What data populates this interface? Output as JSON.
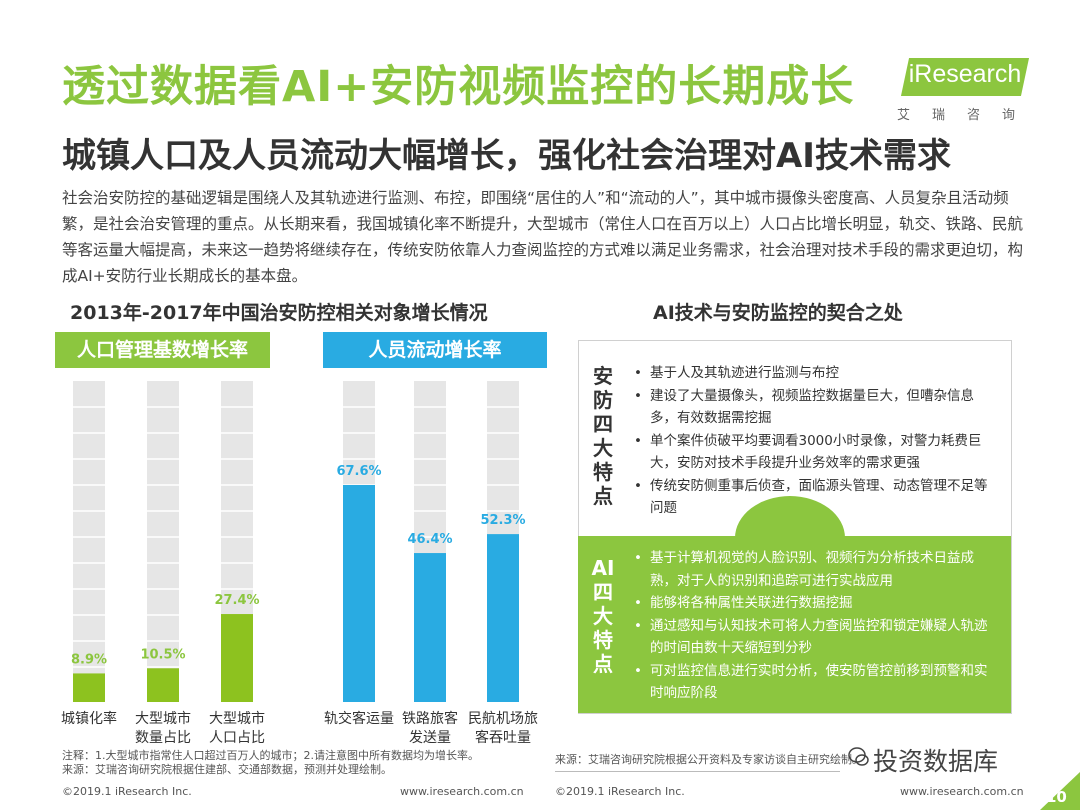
{
  "title": "透过数据看AI+安防视频监控的长期成长",
  "subtitle": "城镇人口及人员流动大幅增长，强化社会治理对AI技术需求",
  "logo": {
    "text": "iResearch",
    "cn": "艾瑞咨询"
  },
  "intro": "社会治安防控的基础逻辑是围绕人及其轨迹进行监测、布控，即围绕“居住的人”和“流动的人”，其中城市摄像头密度高、人员复杂且活动频繁，是社会治安管理的重点。从长期来看，我国城镇化率不断提升，大型城市（常住人口在百万以上）人口占比增长明显，轨交、铁路、民航等客运量大幅提高，未来这一趋势将继续存在，传统安防依靠人力查阅监控的方式难以满足业务需求，社会治理对技术手段的需求更迫切，构成AI+安防行业长期成长的基本盘。",
  "left_section_title": "2013年-2017年中国治安防控相关对象增长情况",
  "right_section_title": "AI技术与安防监控的契合之处",
  "colors": {
    "green": "#8cc63f",
    "green_bar": "#8dc21f",
    "blue": "#29abe2",
    "track": "#e6e6e6"
  },
  "chart_data": [
    {
      "type": "bar",
      "title": "人口管理基数增长率",
      "categories": [
        "城镇化率",
        "大型城市数量占比",
        "大型城市人口占比"
      ],
      "category_lines": [
        [
          "城镇化率"
        ],
        [
          "大型城市",
          "数量占比"
        ],
        [
          "大型城市",
          "人口占比"
        ]
      ],
      "values": [
        8.9,
        10.5,
        27.4
      ],
      "labels": [
        "8.9%",
        "10.5%",
        "27.4%"
      ],
      "ylim": [
        0,
        100
      ]
    },
    {
      "type": "bar",
      "title": "人员流动增长率",
      "categories": [
        "轨交客运量",
        "铁路旅客发送量",
        "民航机场旅客吞吐量"
      ],
      "category_lines": [
        [
          "轨交客运量"
        ],
        [
          "铁路旅客",
          "发送量"
        ],
        [
          "民航机场旅",
          "客吞吐量"
        ]
      ],
      "values": [
        67.6,
        46.4,
        52.3
      ],
      "labels": [
        "67.6%",
        "46.4%",
        "52.3%"
      ],
      "ylim": [
        0,
        100
      ]
    }
  ],
  "panel": {
    "top_label": "安防四大特点",
    "top_points": [
      "基于人及其轨迹进行监测与布控",
      "建设了大量摄像头，视频监控数据量巨大，但嘈杂信息多，有效数据需挖掘",
      "单个案件侦破平均要调看3000小时录像，对警力耗费巨大，安防对技术手段提升业务效率的需求更强",
      "传统安防侧重事后侦查，面临源头管理、动态管理不足等问题"
    ],
    "bottom_label": "AI四大特点",
    "bottom_points": [
      "基于计算机视觉的人脸识别、视频行为分析技术日益成熟，对于人的识别和追踪可进行实战应用",
      "能够将各种属性关联进行数据挖掘",
      "通过感知与认知技术可将人力查阅监控和锁定嫌疑人轨迹的时间由数十天缩短到分秒",
      "可对监控信息进行实时分析，使安防管控前移到预警和实时响应阶段"
    ]
  },
  "notes": {
    "left_note_1": "注释：1.大型城市指常住人口超过百万人的城市；2.请注意图中所有数据均为增长率。",
    "left_note_2": "来源：艾瑞咨询研究院根据住建部、交通部数据，预测并处理绘制。",
    "right_note": "来源：艾瑞咨询研究院根据公开资料及专家访谈自主研究绘制。"
  },
  "footer": {
    "copyright_left": "©2019.1 iResearch Inc.",
    "url_left": "www.iresearch.com.cn",
    "copyright_right": "©2019.1 iResearch Inc.",
    "url_right": "www.iresearch.com.cn",
    "page": "10"
  },
  "watermark": "投资数据库"
}
